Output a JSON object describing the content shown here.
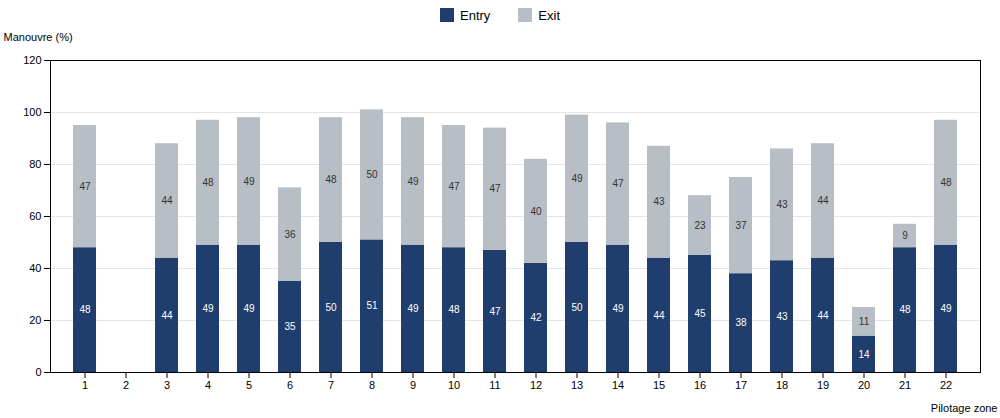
{
  "chart_data": {
    "type": "bar",
    "stacked": true,
    "xlabel": "Pilotage zone",
    "ylabel": "Manouvre (%)",
    "categories": [
      "1",
      "2",
      "3",
      "4",
      "5",
      "6",
      "7",
      "8",
      "9",
      "10",
      "11",
      "12",
      "13",
      "14",
      "15",
      "16",
      "17",
      "18",
      "19",
      "20",
      "21",
      "22"
    ],
    "series": [
      {
        "name": "Entry",
        "color": "#1f3d6d",
        "values": [
          48,
          0,
          44,
          49,
          49,
          35,
          50,
          51,
          49,
          48,
          47,
          42,
          50,
          49,
          44,
          45,
          38,
          43,
          44,
          14,
          48,
          49
        ]
      },
      {
        "name": "Exit",
        "color": "#b8bec5",
        "values": [
          47,
          0,
          44,
          48,
          49,
          36,
          48,
          50,
          49,
          47,
          47,
          40,
          49,
          47,
          43,
          23,
          37,
          43,
          44,
          11,
          9,
          48
        ]
      }
    ],
    "ylim": [
      0,
      120
    ],
    "yticks": [
      0,
      20,
      40,
      60,
      80,
      100,
      120
    ],
    "grid": true,
    "legend": "top",
    "data_labels": true
  }
}
